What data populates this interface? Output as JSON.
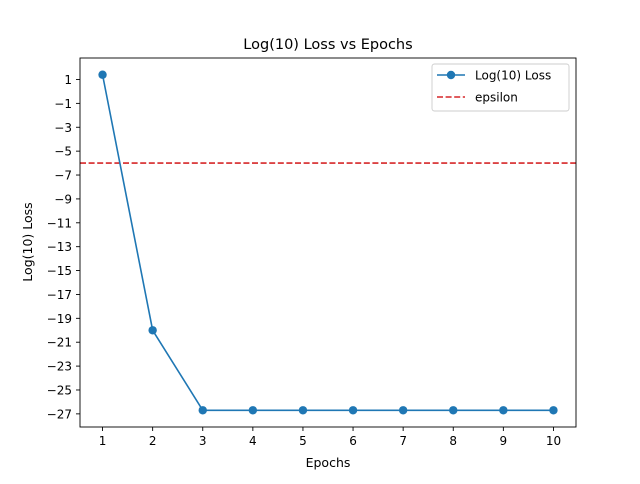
{
  "chart_data": {
    "type": "line",
    "title": "Log(10) Loss vs Epochs",
    "xlabel": "Epochs",
    "ylabel": "Log(10) Loss",
    "x": [
      1,
      2,
      3,
      4,
      5,
      6,
      7,
      8,
      9,
      10
    ],
    "series": [
      {
        "name": "Log(10) Loss",
        "values": [
          1.4,
          -20.0,
          -26.7,
          -26.7,
          -26.7,
          -26.7,
          -26.7,
          -26.7,
          -26.7,
          -26.7
        ],
        "color": "#1f77b4",
        "marker": "circle"
      }
    ],
    "reference_lines": [
      {
        "name": "epsilon",
        "y": -6,
        "color": "#d62728",
        "style": "dashed"
      }
    ],
    "xlim": [
      0.55,
      10.45
    ],
    "ylim": [
      -28.1,
      2.8
    ],
    "xticks": [
      1,
      2,
      3,
      4,
      5,
      6,
      7,
      8,
      9,
      10
    ],
    "yticks": [
      1,
      -1,
      -3,
      -5,
      -7,
      -9,
      -11,
      -13,
      -15,
      -17,
      -19,
      -21,
      -23,
      -25,
      -27
    ],
    "grid": false,
    "legend_position": "top-right"
  }
}
